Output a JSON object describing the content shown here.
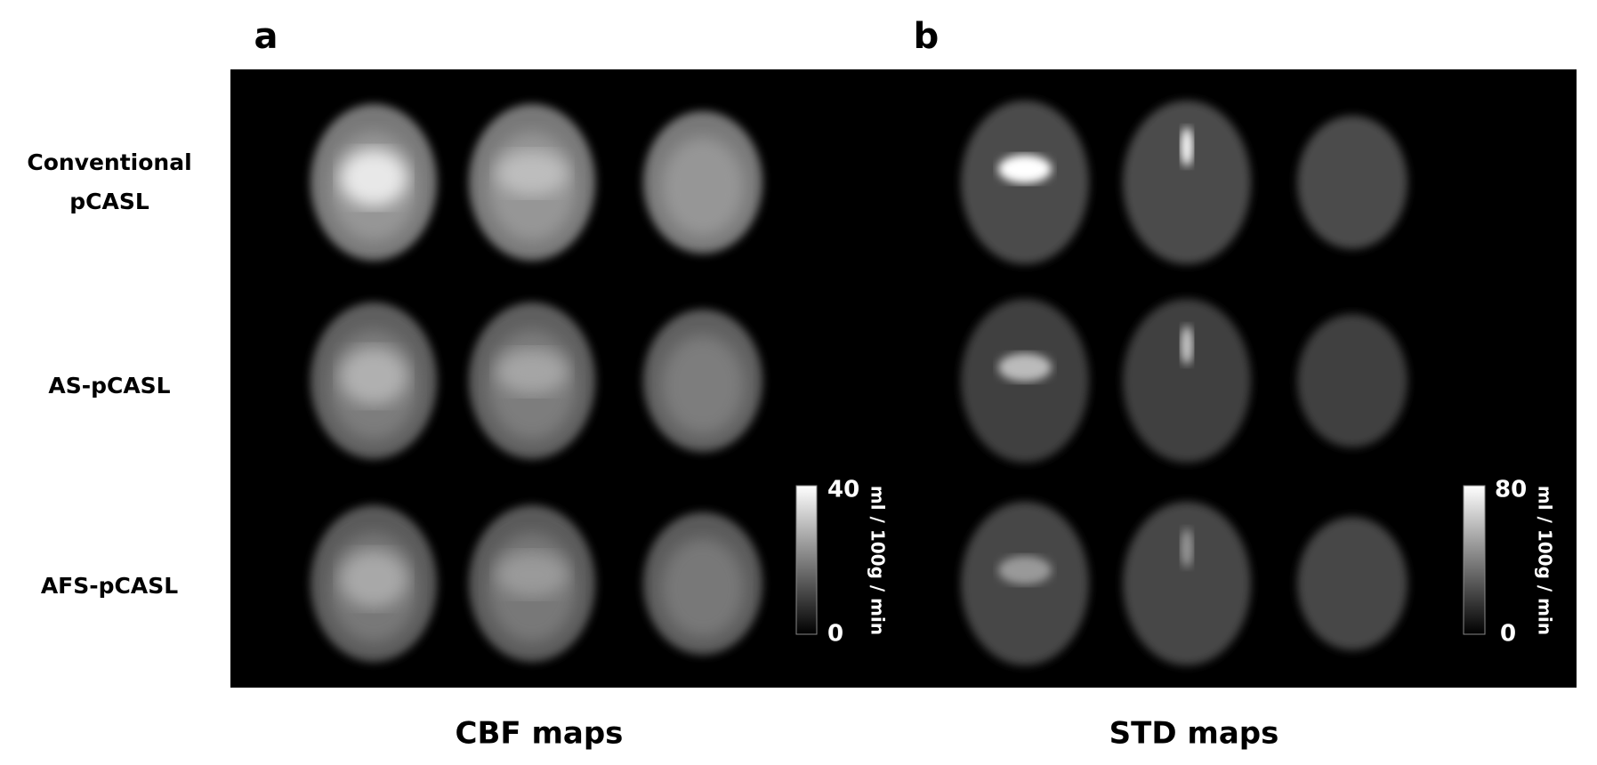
{
  "panels": [
    {
      "label": "a",
      "caption": "CBF maps",
      "colorbar": {
        "max": 40,
        "min": 0,
        "unit": "ml / 100g / min"
      }
    },
    {
      "label": "b",
      "caption": "STD maps",
      "colorbar": {
        "max": 80,
        "min": 0,
        "unit": "ml / 100g / min"
      }
    }
  ],
  "rows": [
    "Conventional pCASL",
    "AS-pCASL",
    "AFS-pCASL"
  ]
}
